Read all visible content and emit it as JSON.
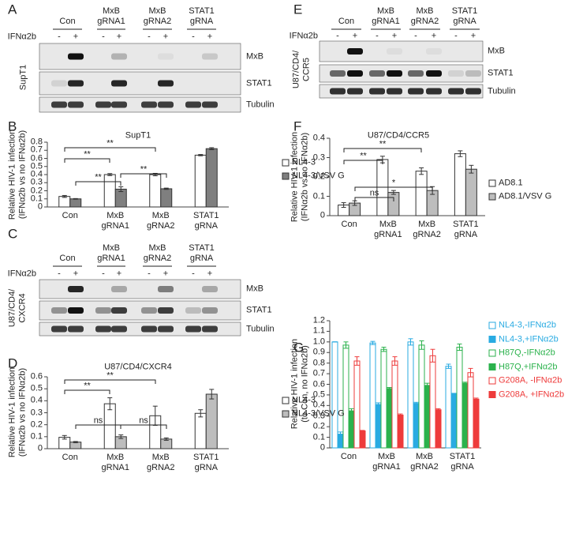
{
  "blots": [
    {
      "panel": "A",
      "groups": [
        "Con",
        "MxB gRNA1",
        "MxB gRNA2",
        "STAT1 gRNA"
      ],
      "treatment": "IFNα2b",
      "lanes": [
        "-",
        "+",
        "-",
        "+",
        "-",
        "+",
        "-",
        "+"
      ],
      "rows": [
        "MxB",
        "STAT1",
        "Tubulin"
      ],
      "cell_line": [
        "SupT1"
      ]
    },
    {
      "panel": "C",
      "groups": [
        "Con",
        "MxB gRNA1",
        "MxB gRNA2",
        "STAT1 gRNA"
      ],
      "treatment": "IFNα2b",
      "lanes": [
        "-",
        "+",
        "-",
        "+",
        "-",
        "+",
        "-",
        "+"
      ],
      "rows": [
        "MxB",
        "STAT1",
        "Tubulin"
      ],
      "cell_line": [
        "U87/CD4/",
        "CXCR4"
      ]
    },
    {
      "panel": "E",
      "groups": [
        "Con",
        "MxB gRNA1",
        "MxB gRNA2",
        "STAT1 gRNA"
      ],
      "treatment": "IFNα2b",
      "lanes": [
        "-",
        "+",
        "-",
        "+",
        "-",
        "+",
        "-",
        "+"
      ],
      "rows": [
        "MxB",
        "STAT1",
        "Tubulin"
      ],
      "cell_line": [
        "U87/CD4/",
        "CCR5"
      ]
    }
  ],
  "chart_data": [
    {
      "panel": "B",
      "type": "bar",
      "title": "SupT1",
      "ylabel": [
        "Relative HIV-1 infection",
        "(IFNα2b vs no IFNα2b)"
      ],
      "categories": [
        "Con",
        "MxB gRNA1",
        "MxB gRNA2",
        "STAT1 gRNA"
      ],
      "series": [
        {
          "name": "NL4-3",
          "color": "#ffffff",
          "edge": "#333333",
          "values": [
            0.13,
            0.4,
            0.4,
            0.64
          ],
          "errors": [
            0.012,
            0.012,
            0.015,
            0.008
          ]
        },
        {
          "name": "NL4-3/VSV G",
          "color": "#7f7f7f",
          "edge": "#333333",
          "values": [
            0.1,
            0.22,
            0.225,
            0.72
          ],
          "errors": [
            0.004,
            0.03,
            0.008,
            0.012
          ]
        }
      ],
      "ylim": [
        0,
        0.8
      ],
      "yticks": [
        0,
        0.1,
        0.2,
        0.3,
        0.4,
        0.5,
        0.6,
        0.7,
        0.8
      ],
      "annotations": [
        "**",
        "**",
        "**",
        "**"
      ]
    },
    {
      "panel": "D",
      "type": "bar",
      "title": "U87/CD4/CXCR4",
      "ylabel": [
        "Relative HIV-1 infection",
        "(IFNα2b vs no IFNα2b)"
      ],
      "categories": [
        "Con",
        "MxB gRNA1",
        "MxB gRNA2",
        "STAT1 gRNA"
      ],
      "series": [
        {
          "name": "NL4-3",
          "color": "#ffffff",
          "edge": "#333333",
          "values": [
            0.095,
            0.375,
            0.275,
            0.295
          ],
          "errors": [
            0.015,
            0.05,
            0.08,
            0.03
          ]
        },
        {
          "name": "NL4-3/VSV G",
          "color": "#bdbdbd",
          "edge": "#333333",
          "values": [
            0.055,
            0.1,
            0.08,
            0.455
          ],
          "errors": [
            0.005,
            0.015,
            0.01,
            0.04
          ]
        }
      ],
      "ylim": [
        0,
        0.6
      ],
      "yticks": [
        0,
        0.1,
        0.2,
        0.3,
        0.4,
        0.5,
        0.6
      ],
      "annotations": [
        "**",
        "**",
        "ns",
        "ns"
      ]
    },
    {
      "panel": "F",
      "type": "bar",
      "title": "U87/CD4/CCR5",
      "ylabel": [
        "Relative HIV-1 infection",
        "(IFNα2b vs no IFNα2b)"
      ],
      "categories": [
        "Con",
        "MxB gRNA1",
        "MxB gRNA2",
        "STAT1 gRNA"
      ],
      "series": [
        {
          "name": "AD8.1",
          "color": "#ffffff",
          "edge": "#333333",
          "values": [
            0.055,
            0.29,
            0.23,
            0.32
          ],
          "errors": [
            0.012,
            0.017,
            0.017,
            0.015
          ]
        },
        {
          "name": "AD8.1/VSV G",
          "color": "#bdbdbd",
          "edge": "#333333",
          "values": [
            0.065,
            0.12,
            0.13,
            0.24
          ],
          "errors": [
            0.012,
            0.01,
            0.02,
            0.02
          ]
        }
      ],
      "ylim": [
        0,
        0.4
      ],
      "yticks": [
        0,
        0.1,
        0.2,
        0.3,
        0.4
      ],
      "annotations": [
        "**",
        "**",
        "*",
        "ns"
      ]
    },
    {
      "panel": "G",
      "type": "bar",
      "ylabel": [
        "Relative HIV-1 infection",
        "(to Con, no IFNα2b)"
      ],
      "categories": [
        "Con",
        "MxB gRNA1",
        "MxB gRNA2",
        "STAT1 gRNA"
      ],
      "series": [
        {
          "name": "NL4-3,-IFNα2b",
          "color": "#ffffff",
          "edge": "#29abe2",
          "values": [
            1.0,
            0.99,
            1.0,
            0.77
          ],
          "errors": [
            0,
            0.015,
            0.03,
            0.02
          ]
        },
        {
          "name": "NL4-3,+IFNα2b",
          "color": "#29abe2",
          "edge": "#29abe2",
          "values": [
            0.13,
            0.41,
            0.42,
            0.51
          ],
          "errors": [
            0.02,
            0.015,
            0.01,
            0.005
          ]
        },
        {
          "name": "H87Q,-IFNα2b",
          "color": "#ffffff",
          "edge": "#2bb24c",
          "values": [
            0.97,
            0.93,
            0.97,
            0.95
          ],
          "errors": [
            0.03,
            0.02,
            0.04,
            0.03
          ]
        },
        {
          "name": "H87Q,+IFNα2b",
          "color": "#2bb24c",
          "edge": "#2bb24c",
          "values": [
            0.35,
            0.56,
            0.59,
            0.61
          ],
          "errors": [
            0.02,
            0.01,
            0.02,
            0.01
          ]
        },
        {
          "name": "G208A, -IFNα2b",
          "color": "#ffffff",
          "edge": "#ee3b3b",
          "values": [
            0.82,
            0.82,
            0.87,
            0.71
          ],
          "errors": [
            0.04,
            0.04,
            0.06,
            0.04
          ]
        },
        {
          "name": "G208A, +IFNα2b",
          "color": "#ee3b3b",
          "edge": "#ee3b3b",
          "values": [
            0.16,
            0.31,
            0.36,
            0.46
          ],
          "errors": [
            0.005,
            0.01,
            0.01,
            0.01
          ]
        }
      ],
      "ylim": [
        0,
        1.2
      ],
      "yticks": [
        0,
        0.1,
        0.2,
        0.3,
        0.4,
        0.5,
        0.6,
        0.7,
        0.8,
        0.9,
        {
          "value": 1,
          "label": "1.0"
        },
        1.1,
        1.2
      ],
      "legend_colored_text": true
    }
  ]
}
